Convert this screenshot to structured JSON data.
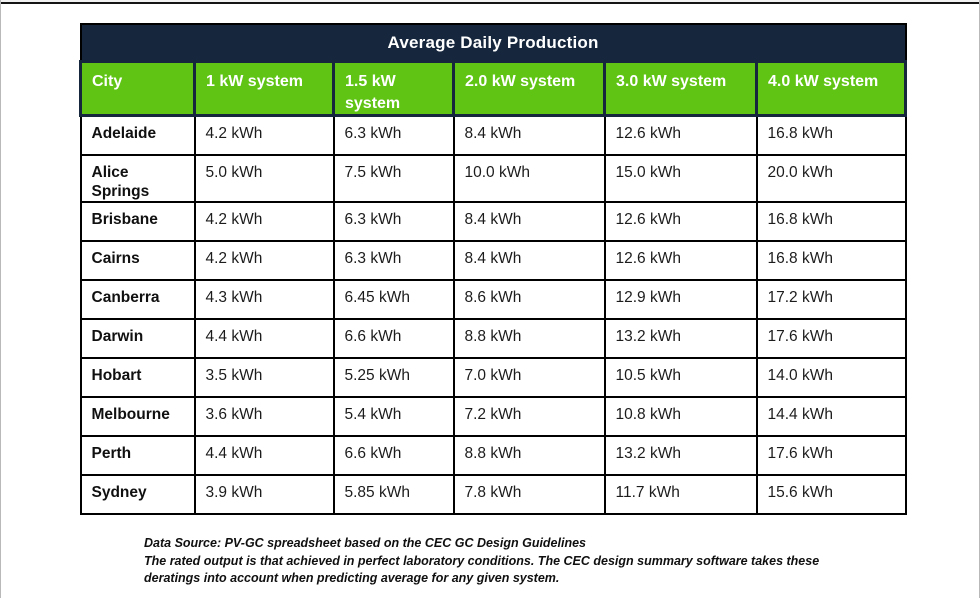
{
  "chart_data": {
    "type": "table",
    "title": "Average Daily Production",
    "columns": [
      "City",
      "1 kW system",
      "1.5 kW system",
      "2.0 kW system",
      "3.0 kW system",
      "4.0 kW system"
    ],
    "rows": [
      {
        "city": "Adelaide",
        "values": [
          "4.2 kWh",
          "6.3 kWh",
          "8.4 kWh",
          "12.6 kWh",
          "16.8 kWh"
        ]
      },
      {
        "city": "Alice Springs",
        "values": [
          "5.0 kWh",
          "7.5 kWh",
          "10.0 kWh",
          "15.0 kWh",
          "20.0 kWh"
        ]
      },
      {
        "city": "Brisbane",
        "values": [
          "4.2 kWh",
          "6.3 kWh",
          "8.4 kWh",
          "12.6 kWh",
          "16.8 kWh"
        ]
      },
      {
        "city": "Cairns",
        "values": [
          "4.2 kWh",
          "6.3 kWh",
          "8.4 kWh",
          "12.6 kWh",
          "16.8 kWh"
        ]
      },
      {
        "city": "Canberra",
        "values": [
          "4.3 kWh",
          "6.45 kWh",
          "8.6 kWh",
          "12.9 kWh",
          "17.2 kWh"
        ]
      },
      {
        "city": "Darwin",
        "values": [
          "4.4 kWh",
          "6.6 kWh",
          "8.8 kWh",
          "13.2 kWh",
          "17.6 kWh"
        ]
      },
      {
        "city": "Hobart",
        "values": [
          "3.5 kWh",
          "5.25 kWh",
          "7.0 kWh",
          "10.5 kWh",
          "14.0 kWh"
        ]
      },
      {
        "city": "Melbourne",
        "values": [
          "3.6 kWh",
          "5.4 kWh",
          "7.2 kWh",
          "10.8 kWh",
          "14.4 kWh"
        ]
      },
      {
        "city": "Perth",
        "values": [
          "4.4 kWh",
          "6.6 kWh",
          "8.8 kWh",
          "13.2 kWh",
          "17.6 kWh"
        ]
      },
      {
        "city": "Sydney",
        "values": [
          "3.9 kWh",
          "5.85 kWh",
          "7.8 kWh",
          "11.7 kWh",
          "15.6 kWh"
        ]
      }
    ],
    "layout": {
      "title_position": "top-center",
      "header_fill": "#5fc414",
      "title_fill": "#15263d",
      "grid": true
    }
  },
  "footer": {
    "line1": "Data Source: PV-GC spreadsheet based on the CEC GC Design Guidelines",
    "line2": "The rated output is that achieved in perfect laboratory conditions. The CEC design summary software takes these deratings into account when predicting average for any given system."
  },
  "colors": {
    "title_navy": "#15263d",
    "header_green": "#5fc414",
    "grid_black": "#000000"
  }
}
